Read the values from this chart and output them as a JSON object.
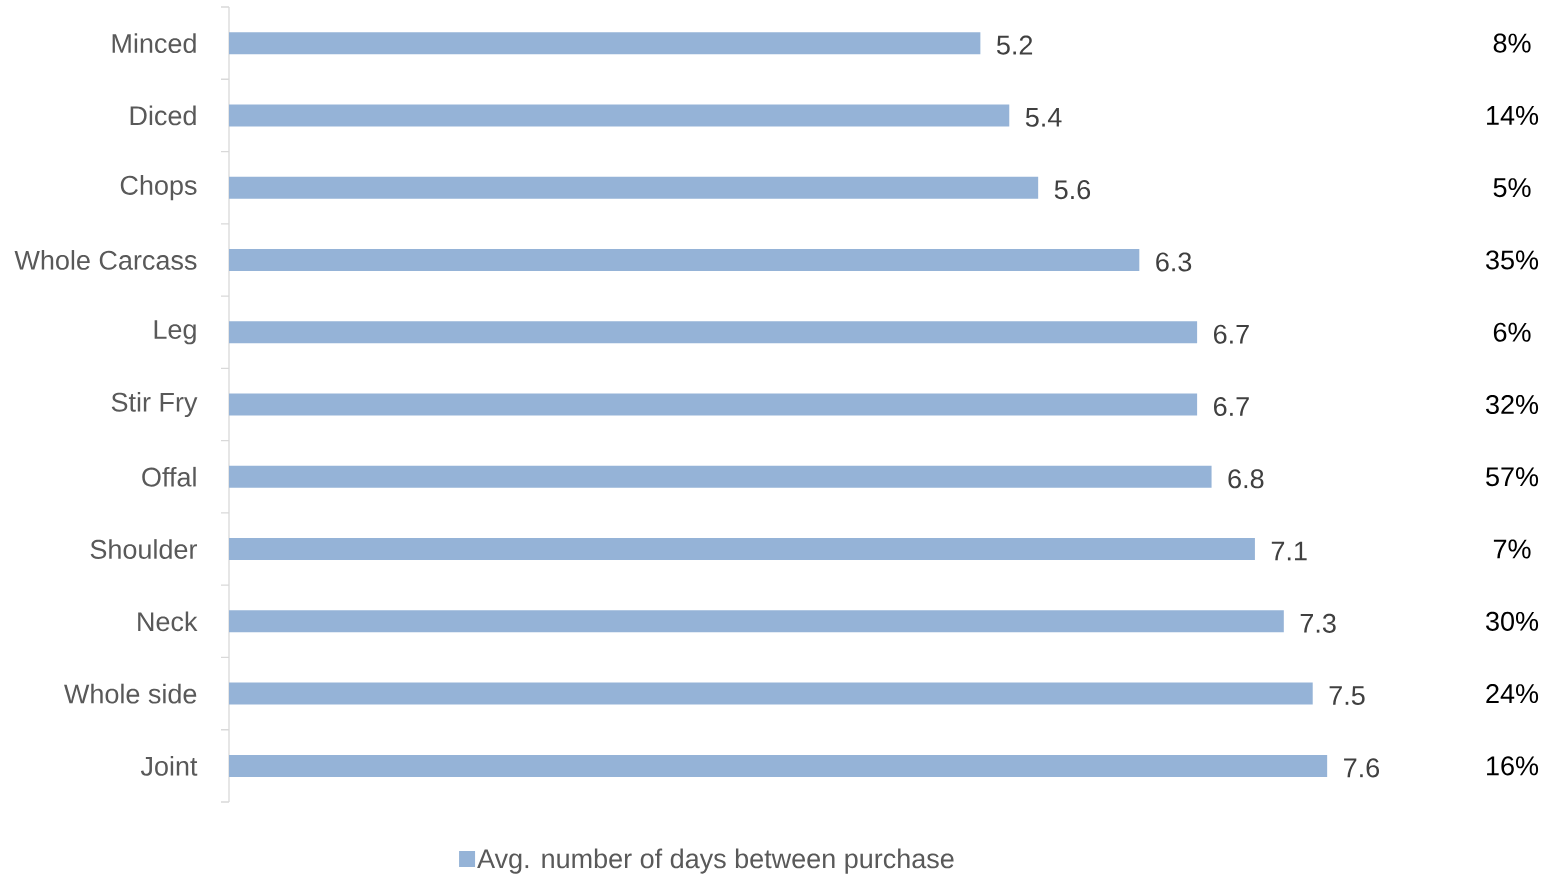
{
  "chart_data": {
    "type": "bar",
    "orientation": "horizontal",
    "categories": [
      "Minced",
      "Diced",
      "Chops",
      "Whole Carcass",
      "Leg",
      "Stir Fry",
      "Offal",
      "Shoulder",
      "Neck",
      "Whole side",
      "Joint"
    ],
    "series": [
      {
        "name": "Avg. number of days between purchase",
        "color": "#95b3d7",
        "values": [
          5.2,
          5.4,
          5.6,
          6.3,
          6.7,
          6.7,
          6.8,
          7.1,
          7.3,
          7.5,
          7.6
        ]
      }
    ],
    "data_labels": true,
    "legend": "bottom",
    "annotations": [
      "8%",
      "14%",
      "5%",
      "35%",
      "6%",
      "32%",
      "57%",
      "7%",
      "30%",
      "24%",
      "16%"
    ]
  }
}
